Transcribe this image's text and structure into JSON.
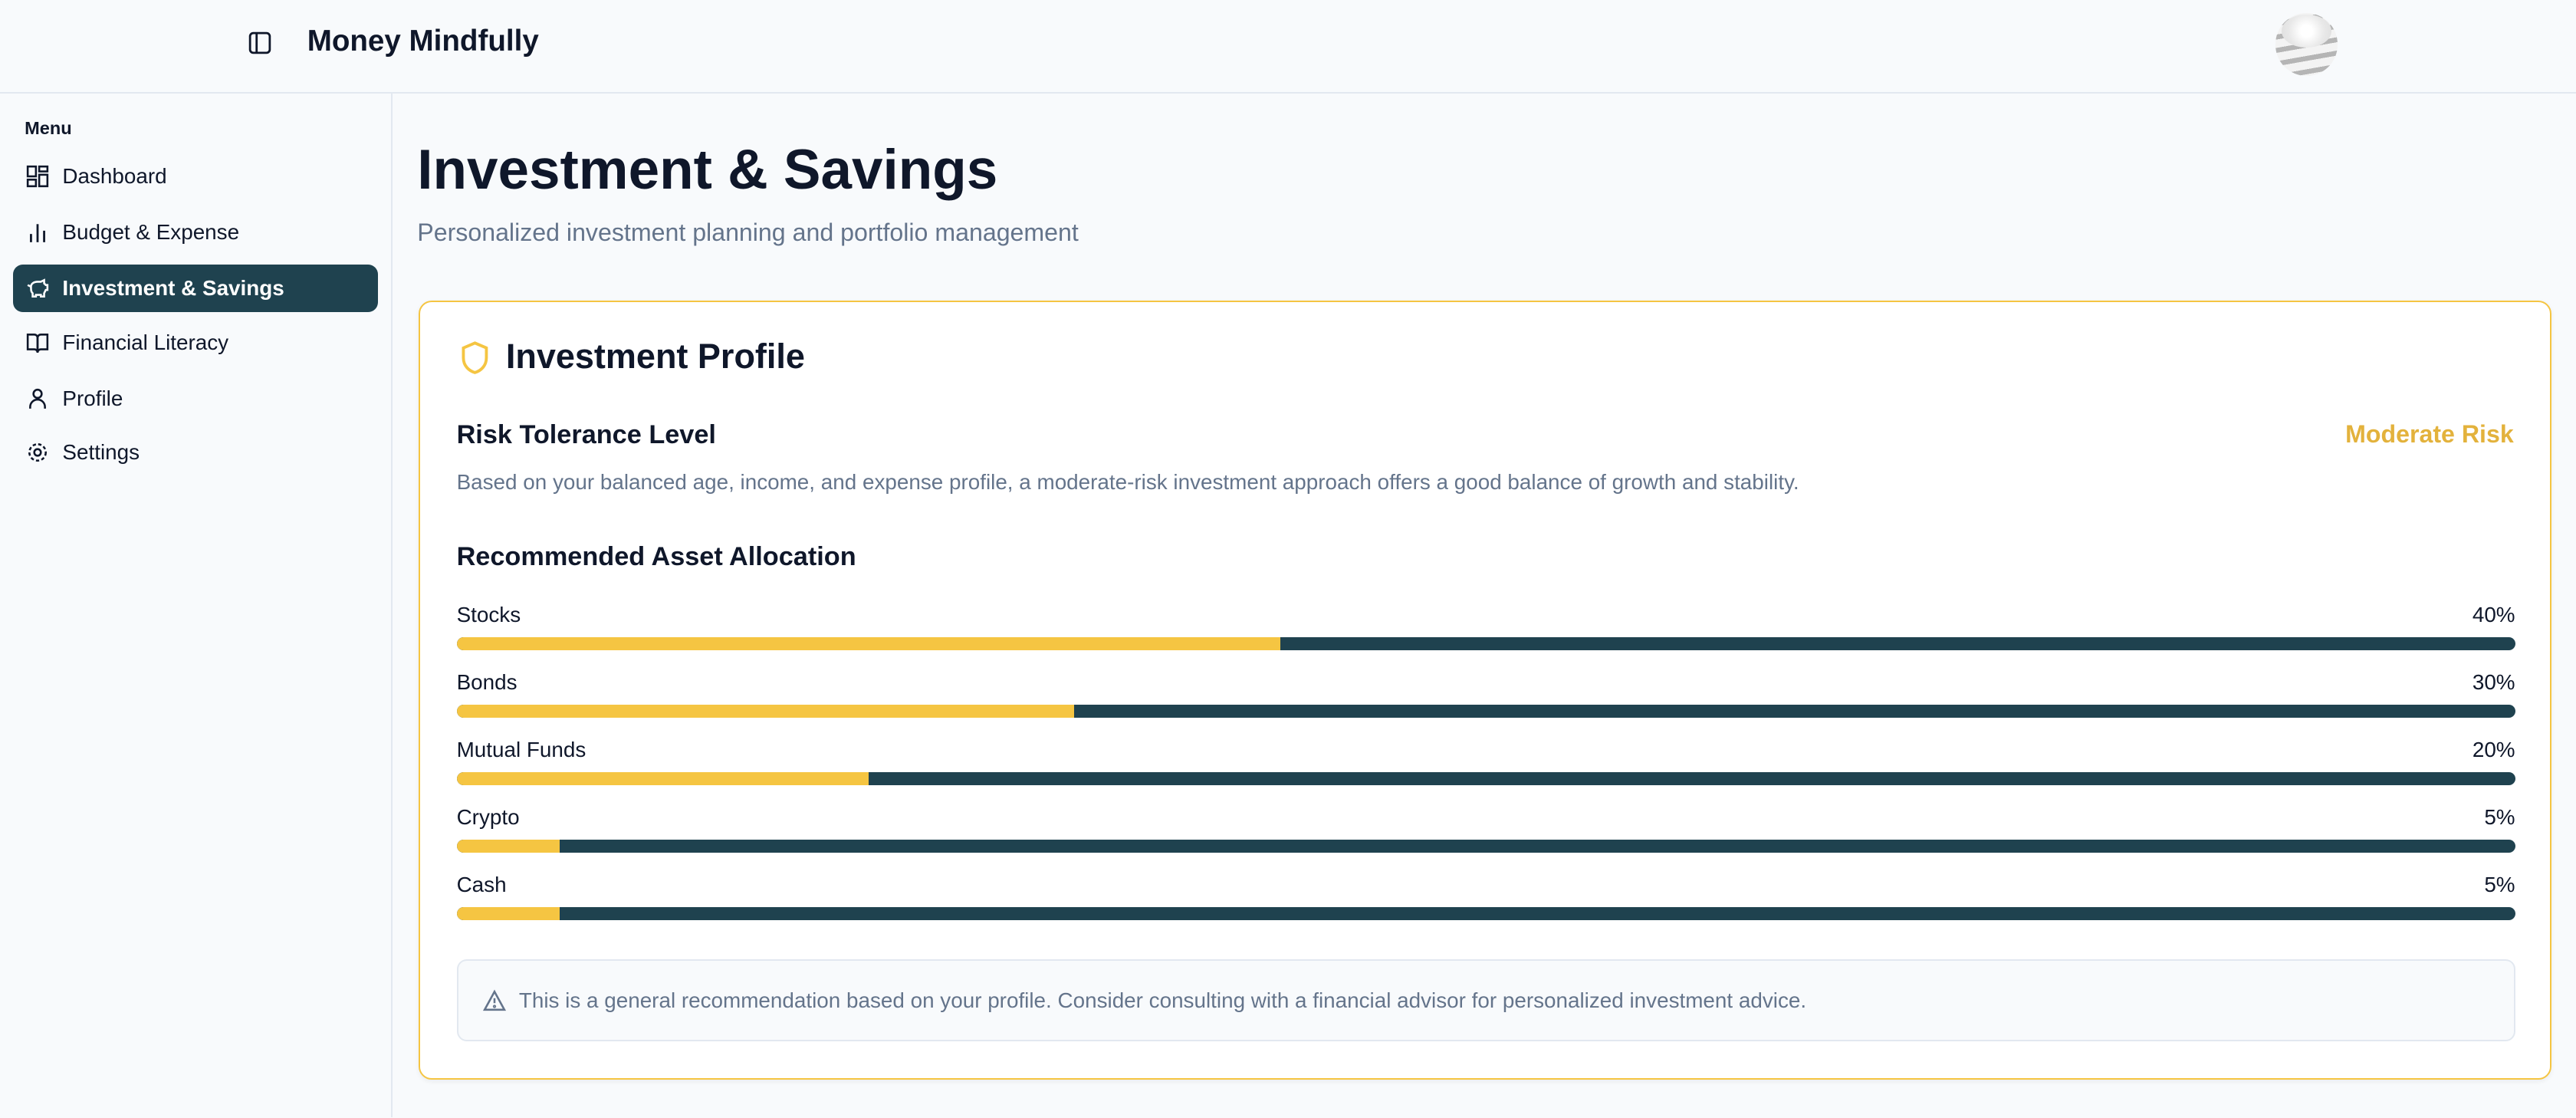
{
  "header": {
    "app_title": "Money Mindfully",
    "toggle_icon": "sidebar-toggle-icon",
    "avatar": "user-avatar"
  },
  "sidebar": {
    "menu_label": "Menu",
    "items": [
      {
        "label": "Dashboard",
        "icon": "dashboard-icon",
        "active": false
      },
      {
        "label": "Budget & Expense",
        "icon": "bar-chart-icon",
        "active": false
      },
      {
        "label": "Investment & Savings",
        "icon": "piggy-bank-icon",
        "active": true
      },
      {
        "label": "Financial Literacy",
        "icon": "book-icon",
        "active": false
      },
      {
        "label": "Profile",
        "icon": "user-icon",
        "active": false
      },
      {
        "label": "Settings",
        "icon": "gear-icon",
        "active": false
      }
    ]
  },
  "main": {
    "title": "Investment & Savings",
    "subtitle": "Personalized investment planning and portfolio management",
    "card": {
      "title": "Investment Profile",
      "icon": "shield-icon",
      "risk_heading": "Risk Tolerance Level",
      "risk_value": "Moderate Risk",
      "risk_description": "Based on your balanced age, income, and expense profile, a moderate-risk investment approach offers a good balance of growth and stability.",
      "allocation_heading": "Recommended Asset Allocation",
      "allocations": [
        {
          "label": "Stocks",
          "percent_label": "40%",
          "percent": 40
        },
        {
          "label": "Bonds",
          "percent_label": "30%",
          "percent": 30
        },
        {
          "label": "Mutual Funds",
          "percent_label": "20%",
          "percent": 20
        },
        {
          "label": "Crypto",
          "percent_label": "5%",
          "percent": 5
        },
        {
          "label": "Cash",
          "percent_label": "5%",
          "percent": 5
        }
      ],
      "notice": "This is a general recommendation based on your profile. Consider consulting with a financial advisor for personalized investment advice.",
      "notice_icon": "warning-icon"
    }
  },
  "colors": {
    "accent": "#f5c542",
    "primary": "#1f424f",
    "risk": "#e3b23c",
    "muted": "#64748b"
  }
}
